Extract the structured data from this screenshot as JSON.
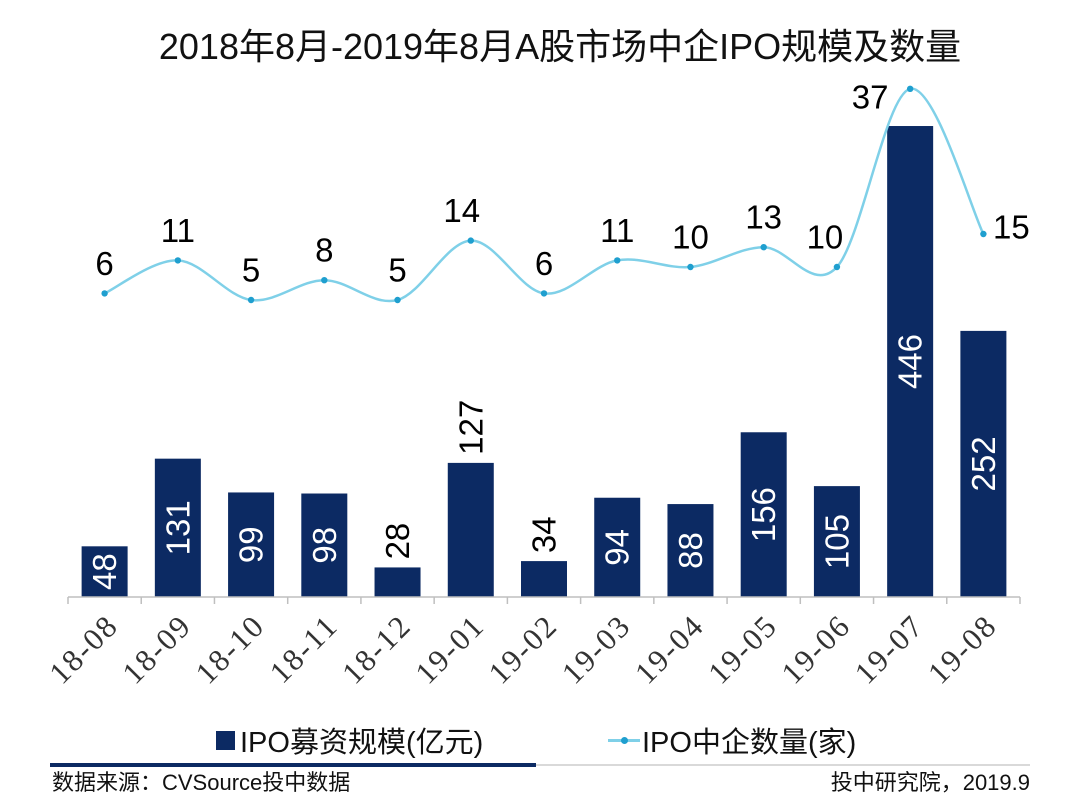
{
  "chart_data": {
    "type": "bar",
    "title": "2018年8月-2019年8月A股市场中企IPO规模及数量",
    "categories": [
      "18-08",
      "18-09",
      "18-10",
      "18-11",
      "18-12",
      "19-01",
      "19-02",
      "19-03",
      "19-04",
      "19-05",
      "19-06",
      "19-07",
      "19-08"
    ],
    "series": [
      {
        "name": "IPO募资规模(亿元)",
        "type": "bar",
        "values": [
          48,
          131,
          99,
          98,
          28,
          127,
          34,
          94,
          88,
          156,
          105,
          446,
          252
        ],
        "color": "#0c2a63"
      },
      {
        "name": "IPO中企数量(家)",
        "type": "line",
        "values": [
          6,
          11,
          5,
          8,
          5,
          14,
          6,
          11,
          10,
          13,
          10,
          37,
          15
        ],
        "color": "#7fd0e8",
        "marker_color": "#1f9fcf"
      }
    ],
    "xlabel": "",
    "ylabel": "",
    "ylim": [
      0,
      500
    ],
    "y2lim": [
      -40,
      40
    ],
    "grid": false,
    "legend": "bottom"
  },
  "footer": {
    "source": "数据来源：CVSource投中数据",
    "credit": "投中研究院，2019.9"
  },
  "colors": {
    "axis": "#bfbfbf",
    "tick_label": "#333333",
    "label_inside": "#ffffff",
    "label_outside": "#000000",
    "rule_dark": "#0c2a63",
    "rule_light": "#d9d9d9"
  }
}
